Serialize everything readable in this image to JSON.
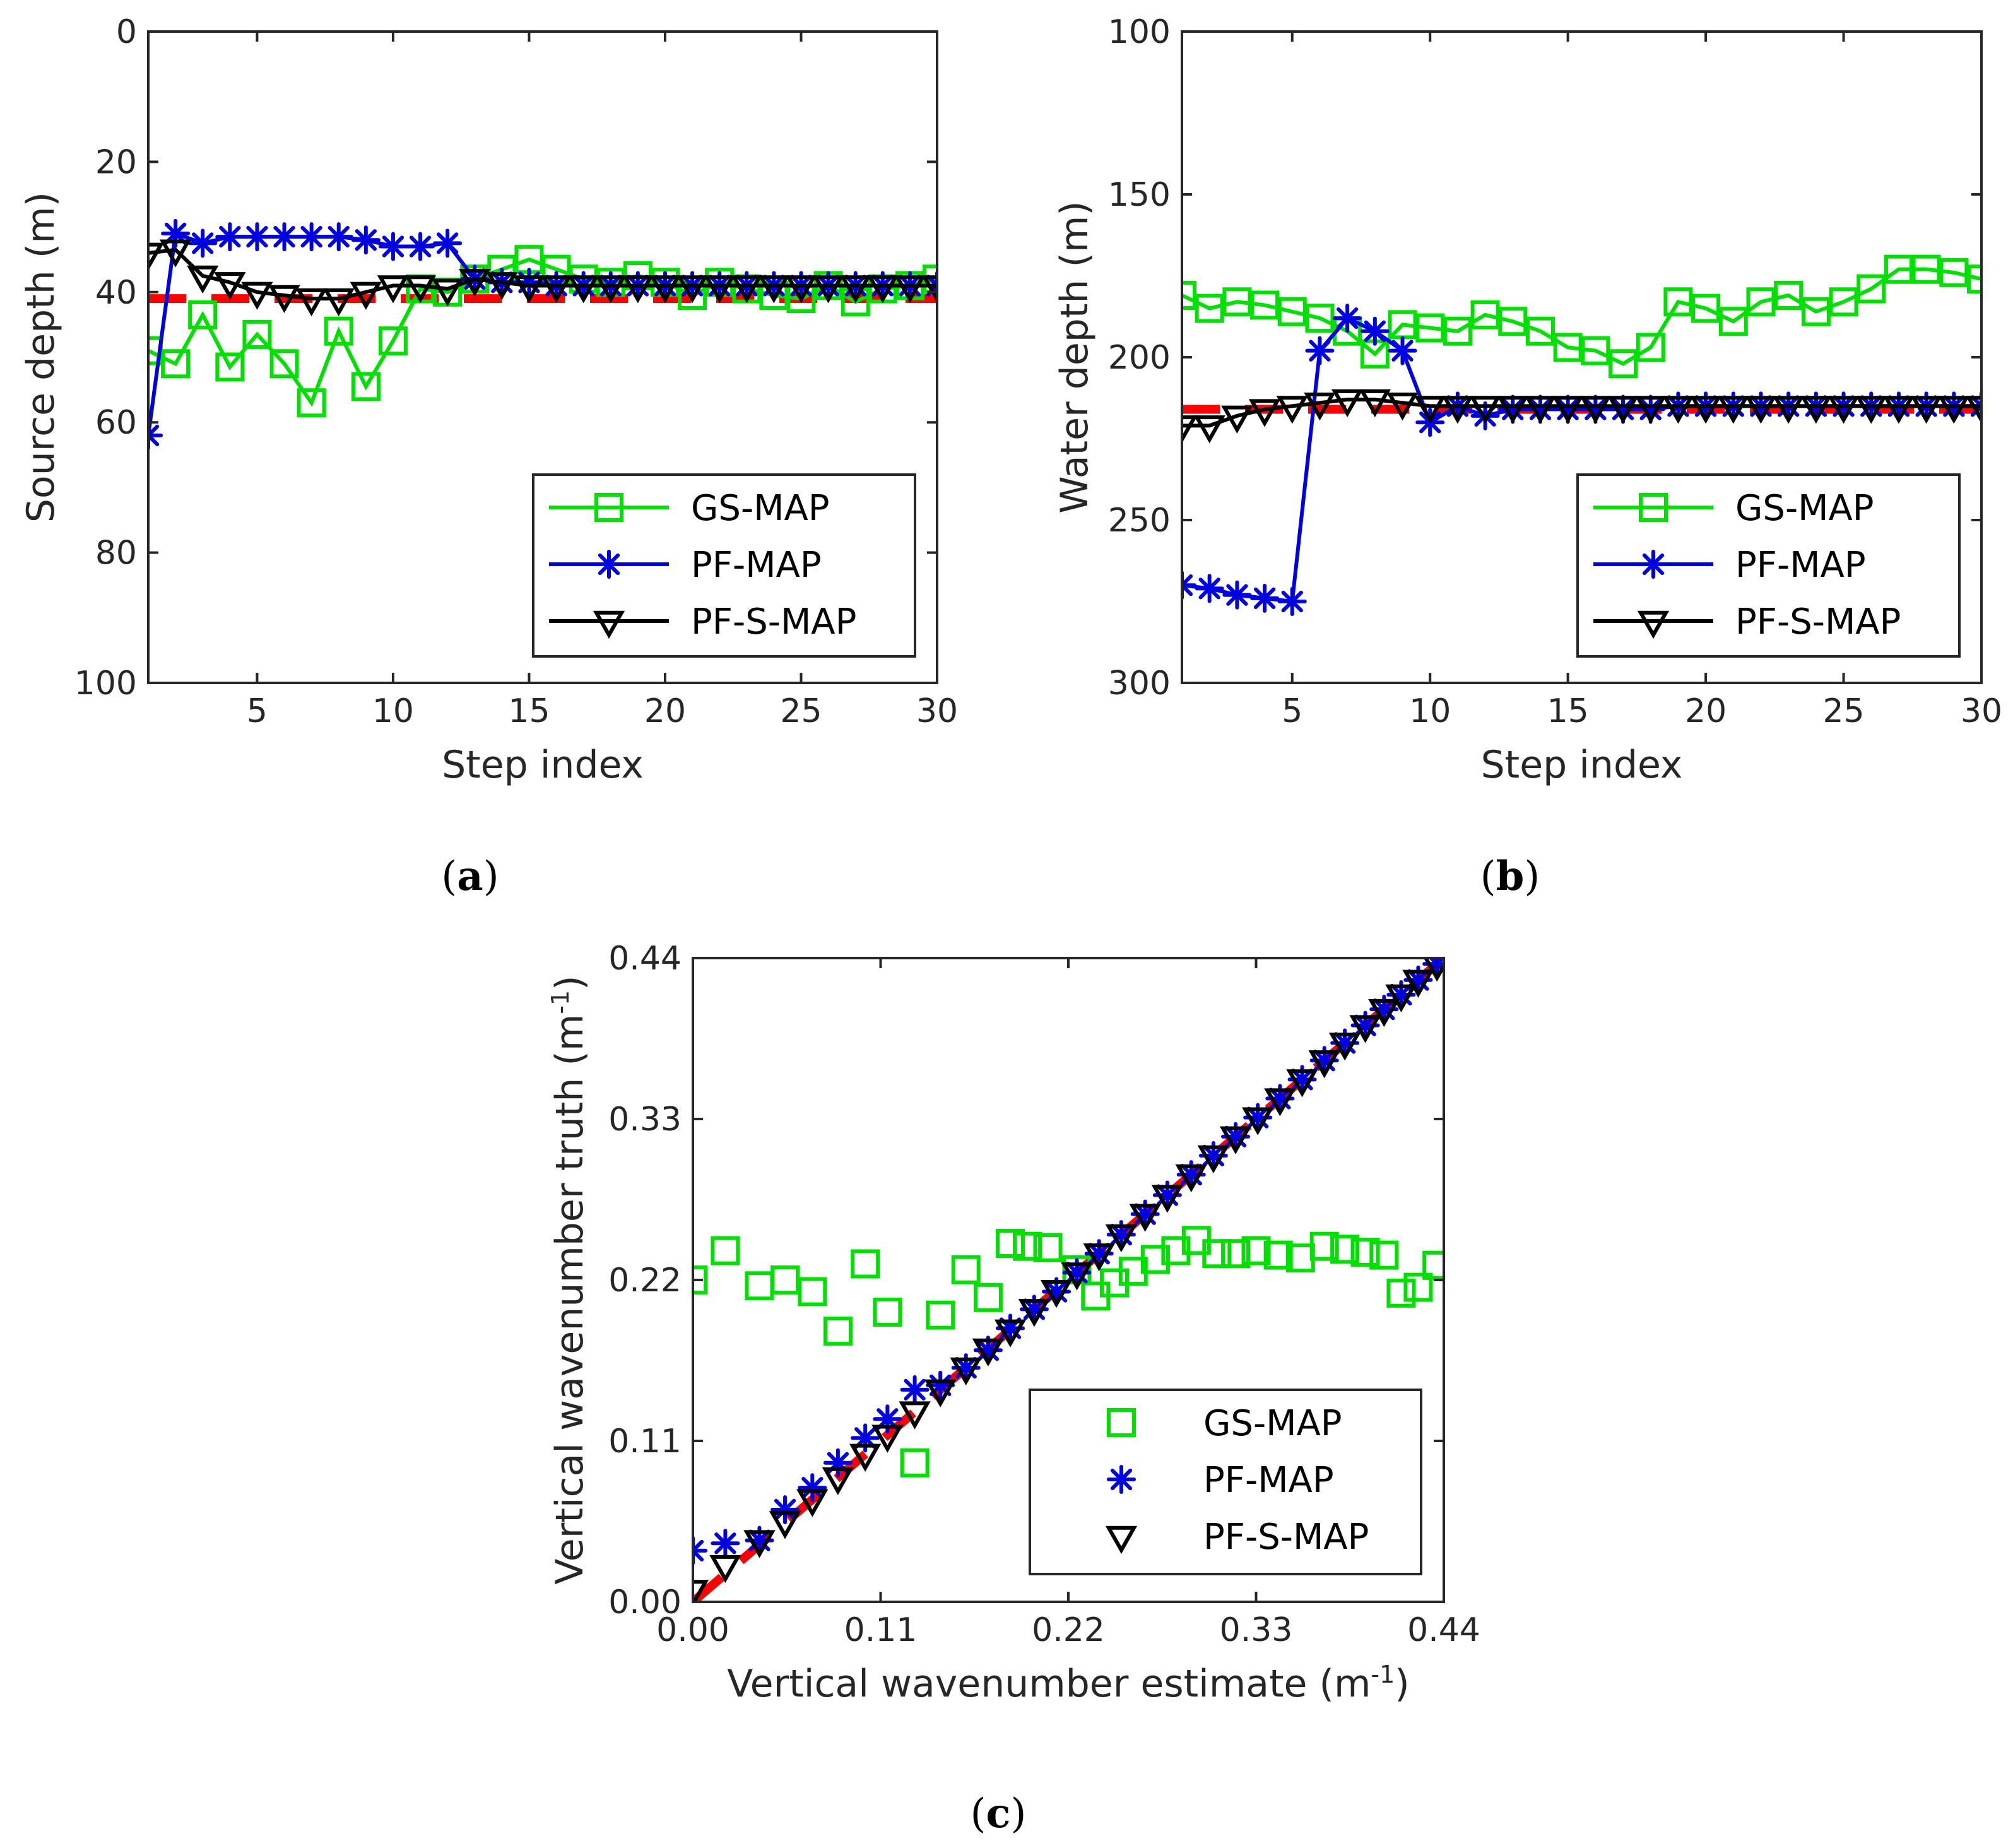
{
  "figure": {
    "colors": {
      "gs": "#00e000",
      "pf": "#0000e0",
      "pfs": "#000000",
      "truth": "#ff0000",
      "axis": "#262626"
    }
  },
  "chart_data": [
    {
      "id": "a",
      "panel_label": "a",
      "type": "line",
      "xlabel": "Step index",
      "ylabel": "Source depth (m)",
      "xlim": [
        1,
        30
      ],
      "ylim": [
        0,
        100
      ],
      "y_reversed": true,
      "xticks": [
        5,
        10,
        15,
        20,
        25,
        30
      ],
      "yticks": [
        0,
        20,
        40,
        60,
        80,
        100
      ],
      "legend_position": "lower-right",
      "x": [
        1,
        2,
        3,
        4,
        5,
        6,
        7,
        8,
        9,
        10,
        11,
        12,
        13,
        14,
        15,
        16,
        17,
        18,
        19,
        20,
        21,
        22,
        23,
        24,
        25,
        26,
        27,
        28,
        29,
        30
      ],
      "truth": {
        "y": 41
      },
      "series": [
        {
          "name": "GS-MAP",
          "key": "gs",
          "marker": "square",
          "line": true,
          "values": [
            49,
            51,
            43.5,
            51.5,
            46.5,
            51,
            57,
            46,
            54.5,
            47.5,
            39.5,
            40,
            38,
            36.5,
            35,
            36.5,
            38,
            38.5,
            37.5,
            38.5,
            40.5,
            38.5,
            39.5,
            40.5,
            41,
            39,
            41.5,
            39.5,
            39,
            38
          ]
        },
        {
          "name": "PF-MAP",
          "key": "pf",
          "marker": "asterisk",
          "line": true,
          "values": [
            62,
            31,
            32.5,
            31.5,
            31.5,
            31.5,
            31.5,
            31.5,
            32,
            33,
            33,
            32.5,
            38,
            38.5,
            38.5,
            39,
            39,
            39,
            39,
            39,
            39,
            39,
            39,
            39,
            39,
            39,
            39,
            39,
            39,
            39
          ]
        },
        {
          "name": "PF-S-MAP",
          "key": "pfs",
          "marker": "triangle",
          "line": true,
          "values": [
            34,
            33.5,
            37.5,
            38.5,
            40,
            40.5,
            41,
            41,
            40,
            39,
            39,
            39.5,
            38,
            38.5,
            39,
            39,
            39,
            39,
            39,
            39,
            39,
            39,
            39,
            39,
            39,
            39,
            39,
            39,
            39,
            39
          ]
        }
      ]
    },
    {
      "id": "b",
      "panel_label": "b",
      "type": "line",
      "xlabel": "Step index",
      "ylabel": "Water depth (m)",
      "xlim": [
        1,
        30
      ],
      "ylim": [
        100,
        300
      ],
      "y_reversed": true,
      "xticks": [
        5,
        10,
        15,
        20,
        25,
        30
      ],
      "yticks": [
        100,
        150,
        200,
        250,
        300
      ],
      "legend_position": "lower-right",
      "x": [
        1,
        2,
        3,
        4,
        5,
        6,
        7,
        8,
        9,
        10,
        11,
        12,
        13,
        14,
        15,
        16,
        17,
        18,
        19,
        20,
        21,
        22,
        23,
        24,
        25,
        26,
        27,
        28,
        29,
        30
      ],
      "truth": {
        "y": 216
      },
      "series": [
        {
          "name": "GS-MAP",
          "key": "gs",
          "marker": "square",
          "line": true,
          "values": [
            181,
            185,
            183,
            184,
            186,
            188,
            192,
            199,
            190,
            191,
            192,
            187,
            189,
            192,
            197,
            198,
            202,
            197,
            183,
            185,
            189,
            183,
            181,
            186,
            183,
            179,
            173,
            173,
            174,
            176
          ]
        },
        {
          "name": "PF-MAP",
          "key": "pf",
          "marker": "asterisk",
          "line": true,
          "values": [
            270,
            271,
            273,
            274,
            275,
            198,
            188,
            192,
            198,
            220,
            215,
            218,
            216,
            216,
            216,
            216,
            216,
            216,
            215,
            215,
            215,
            215,
            215,
            215,
            215,
            215,
            215,
            215,
            215,
            215
          ]
        },
        {
          "name": "PF-S-MAP",
          "key": "pfs",
          "marker": "triangle",
          "line": true,
          "values": [
            221,
            221,
            218,
            216,
            215,
            214,
            213,
            213,
            214,
            215,
            215,
            215,
            215,
            215,
            215,
            215,
            215,
            215,
            215,
            215,
            215,
            215,
            215,
            215,
            215,
            215,
            215,
            215,
            215,
            215
          ]
        }
      ]
    },
    {
      "id": "c",
      "panel_label": "c",
      "type": "scatter",
      "xlabel": "Vertical wavenumber estimate (m",
      "xlabel_sup": "-1",
      "xlabel_end": ")",
      "ylabel": "Vertical wavenumber truth (m",
      "ylabel_sup": "-1",
      "ylabel_end": ")",
      "xlim": [
        0,
        0.44
      ],
      "ylim": [
        0,
        0.44
      ],
      "y_reversed": false,
      "xticks": [
        "0.00",
        "0.11",
        "0.22",
        "0.33",
        "0.44"
      ],
      "yticks": [
        "0.00",
        "0.11",
        "0.22",
        "0.33",
        "0.44"
      ],
      "legend_position": "lower-right",
      "truth_line": {
        "x": [
          0,
          0.44
        ],
        "y": [
          0,
          0.44
        ]
      },
      "series": [
        {
          "name": "GS-MAP",
          "key": "gs",
          "marker": "square",
          "line": false,
          "x": [
            0.0,
            0.019,
            0.039,
            0.054,
            0.07,
            0.085,
            0.101,
            0.114,
            0.13,
            0.145,
            0.16,
            0.173,
            0.186,
            0.196,
            0.208,
            0.225,
            0.236,
            0.247,
            0.258,
            0.271,
            0.283,
            0.295,
            0.307,
            0.318,
            0.33,
            0.343,
            0.356,
            0.37,
            0.382,
            0.394,
            0.405,
            0.415,
            0.425,
            0.436
          ],
          "y": [
            0.22,
            0.24,
            0.216,
            0.22,
            0.212,
            0.185,
            0.231,
            0.198,
            0.095,
            0.196,
            0.227,
            0.208,
            0.245,
            0.243,
            0.242,
            0.227,
            0.209,
            0.218,
            0.226,
            0.234,
            0.24,
            0.247,
            0.238,
            0.238,
            0.24,
            0.237,
            0.235,
            0.243,
            0.241,
            0.239,
            0.237,
            0.211,
            0.215,
            0.23
          ]
        },
        {
          "name": "PF-MAP",
          "key": "pf",
          "marker": "asterisk",
          "line": false,
          "x": [
            0.0,
            0.019,
            0.039,
            0.054,
            0.07,
            0.085,
            0.101,
            0.114,
            0.13,
            0.145,
            0.16,
            0.173,
            0.186,
            0.2,
            0.213,
            0.225,
            0.238,
            0.251,
            0.265,
            0.278,
            0.292,
            0.305,
            0.318,
            0.331,
            0.344,
            0.357,
            0.37,
            0.382,
            0.394,
            0.405,
            0.415,
            0.425,
            0.436
          ],
          "y": [
            0.035,
            0.04,
            0.042,
            0.063,
            0.078,
            0.095,
            0.112,
            0.125,
            0.145,
            0.148,
            0.16,
            0.172,
            0.187,
            0.2,
            0.212,
            0.225,
            0.238,
            0.251,
            0.265,
            0.278,
            0.292,
            0.305,
            0.318,
            0.331,
            0.344,
            0.357,
            0.37,
            0.382,
            0.394,
            0.405,
            0.415,
            0.425,
            0.436
          ]
        },
        {
          "name": "PF-S-MAP",
          "key": "pfs",
          "marker": "triangle",
          "line": false,
          "x": [
            0.0,
            0.019,
            0.039,
            0.054,
            0.07,
            0.085,
            0.101,
            0.114,
            0.13,
            0.145,
            0.16,
            0.173,
            0.186,
            0.2,
            0.213,
            0.225,
            0.238,
            0.251,
            0.265,
            0.278,
            0.292,
            0.305,
            0.318,
            0.331,
            0.344,
            0.357,
            0.37,
            0.382,
            0.394,
            0.405,
            0.415,
            0.425,
            0.436
          ],
          "y": [
            0.008,
            0.025,
            0.042,
            0.055,
            0.07,
            0.085,
            0.101,
            0.114,
            0.13,
            0.145,
            0.16,
            0.173,
            0.186,
            0.2,
            0.213,
            0.225,
            0.238,
            0.251,
            0.265,
            0.278,
            0.292,
            0.305,
            0.318,
            0.331,
            0.344,
            0.357,
            0.37,
            0.382,
            0.394,
            0.405,
            0.415,
            0.425,
            0.436
          ]
        }
      ]
    }
  ]
}
